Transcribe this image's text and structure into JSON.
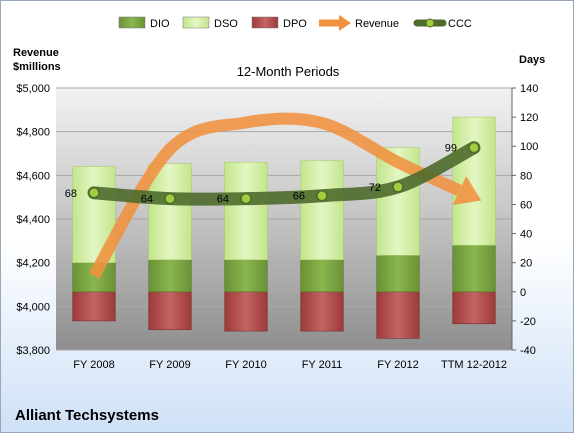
{
  "chart_data": {
    "type": "bar",
    "title": "12-Month Periods",
    "company": "Alliant Techsystems",
    "categories": [
      "FY 2008",
      "FY 2009",
      "FY 2010",
      "FY 2011",
      "FY 2012",
      "TTM 12-2012"
    ],
    "left_axis": {
      "label": "Revenue\n$millions",
      "ylim": [
        3800,
        5000
      ],
      "ticks": [
        "$3,800",
        "$4,000",
        "$4,200",
        "$4,400",
        "$4,600",
        "$4,800",
        "$5,000"
      ]
    },
    "right_axis": {
      "label": "Days",
      "ylim": [
        -40,
        140
      ],
      "ticks": [
        "-40",
        "-20",
        "0",
        "20",
        "40",
        "60",
        "80",
        "100",
        "120",
        "140"
      ]
    },
    "legend_position": "top",
    "series": [
      {
        "name": "DIO",
        "axis": "right",
        "kind": "stacked-bar",
        "color": "#7aa03f",
        "values": [
          20,
          22,
          22,
          22,
          25,
          32
        ]
      },
      {
        "name": "DSO",
        "axis": "right",
        "kind": "stacked-bar",
        "color": "#d4efa3",
        "values": [
          66,
          66,
          67,
          68,
          74,
          88
        ]
      },
      {
        "name": "DPO",
        "axis": "right",
        "kind": "stacked-bar",
        "color": "#b04a4a",
        "values": [
          -20,
          -26,
          -27,
          -27,
          -32,
          -22
        ]
      },
      {
        "name": "Revenue",
        "axis": "left",
        "kind": "trend-arrow",
        "color": "#f0913f",
        "values": [
          4140,
          4720,
          4842,
          4840,
          4660,
          4500
        ]
      },
      {
        "name": "CCC",
        "axis": "right",
        "kind": "line",
        "color": "#4e6b2c",
        "values": [
          68,
          64,
          64,
          66,
          72,
          99
        ]
      }
    ]
  }
}
